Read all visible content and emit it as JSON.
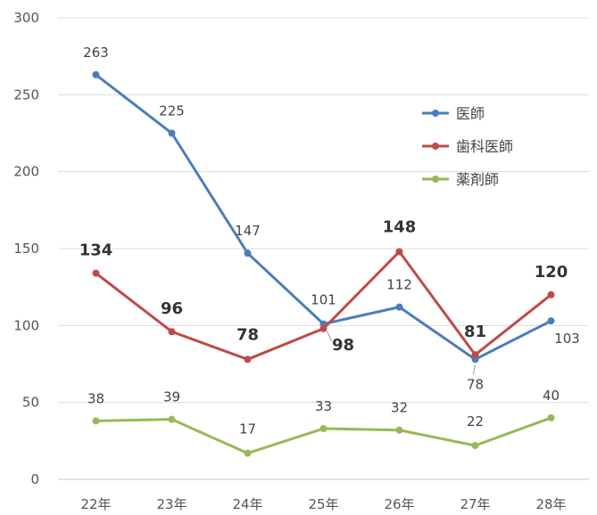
{
  "chart_data": {
    "type": "line",
    "categories": [
      "22年",
      "23年",
      "24年",
      "25年",
      "26年",
      "27年",
      "28年"
    ],
    "ylim": [
      0,
      300
    ],
    "yticks": [
      0,
      50,
      100,
      150,
      200,
      250,
      300
    ],
    "grid": true,
    "legend_position": "right",
    "series": [
      {
        "name": "医師",
        "color": "#4a7ebb",
        "values": [
          263,
          225,
          147,
          101,
          112,
          78,
          103
        ],
        "label_style": "normal"
      },
      {
        "name": "歯科医師",
        "color": "#be4b48",
        "values": [
          134,
          96,
          78,
          98,
          148,
          81,
          120
        ],
        "label_style": "bold"
      },
      {
        "name": "薬剤師",
        "color": "#98b954",
        "values": [
          38,
          39,
          17,
          33,
          32,
          22,
          40
        ],
        "label_style": "normal"
      }
    ]
  }
}
